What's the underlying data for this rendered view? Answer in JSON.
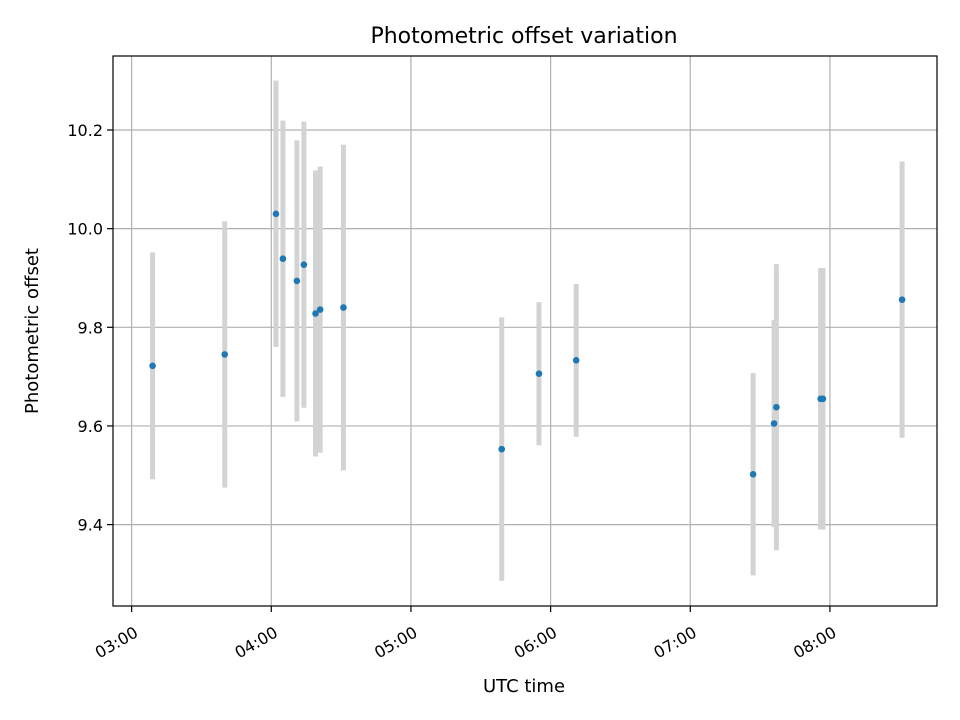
{
  "chart_data": {
    "type": "scatter",
    "title": "Photometric offset variation",
    "xlabel": "UTC time",
    "ylabel": "Photometric offset",
    "x_tick_labels": [
      "03:00",
      "04:00",
      "05:00",
      "06:00",
      "07:00",
      "08:00"
    ],
    "y_tick_labels": [
      "9.4",
      "9.6",
      "9.8",
      "10.0",
      "10.2"
    ],
    "y_ticks": [
      9.4,
      9.6,
      9.8,
      10.0,
      10.2
    ],
    "x_ticks": [
      "03:00",
      "04:00",
      "05:00",
      "06:00",
      "07:00",
      "08:00"
    ],
    "xlim": [
      "02:52",
      "08:46"
    ],
    "ylim": [
      9.235,
      10.35
    ],
    "grid": true,
    "colors": {
      "point": "#1f77b4",
      "errorbar": "#d3d3d3",
      "grid": "#b0b0b0"
    },
    "points": [
      {
        "x": "03:09",
        "y": 9.722,
        "err": 0.23
      },
      {
        "x": "03:40",
        "y": 9.745,
        "err": 0.27
      },
      {
        "x": "04:02",
        "y": 10.03,
        "err": 0.27
      },
      {
        "x": "04:05",
        "y": 9.939,
        "err": 0.28
      },
      {
        "x": "04:11",
        "y": 9.894,
        "err": 0.285
      },
      {
        "x": "04:14",
        "y": 9.927,
        "err": 0.29
      },
      {
        "x": "04:19",
        "y": 9.828,
        "err": 0.29
      },
      {
        "x": "04:21",
        "y": 9.836,
        "err": 0.29
      },
      {
        "x": "04:31",
        "y": 9.84,
        "err": 0.33
      },
      {
        "x": "05:39",
        "y": 9.553,
        "err": 0.267
      },
      {
        "x": "05:55",
        "y": 9.706,
        "err": 0.145
      },
      {
        "x": "06:11",
        "y": 9.733,
        "err": 0.155
      },
      {
        "x": "07:27",
        "y": 9.502,
        "err": 0.205
      },
      {
        "x": "07:36",
        "y": 9.605,
        "err": 0.21
      },
      {
        "x": "07:37",
        "y": 9.638,
        "err": 0.29
      },
      {
        "x": "07:56",
        "y": 9.655,
        "err": 0.265
      },
      {
        "x": "07:57",
        "y": 9.655,
        "err": 0.265
      },
      {
        "x": "08:31",
        "y": 9.856,
        "err": 0.28
      }
    ]
  }
}
